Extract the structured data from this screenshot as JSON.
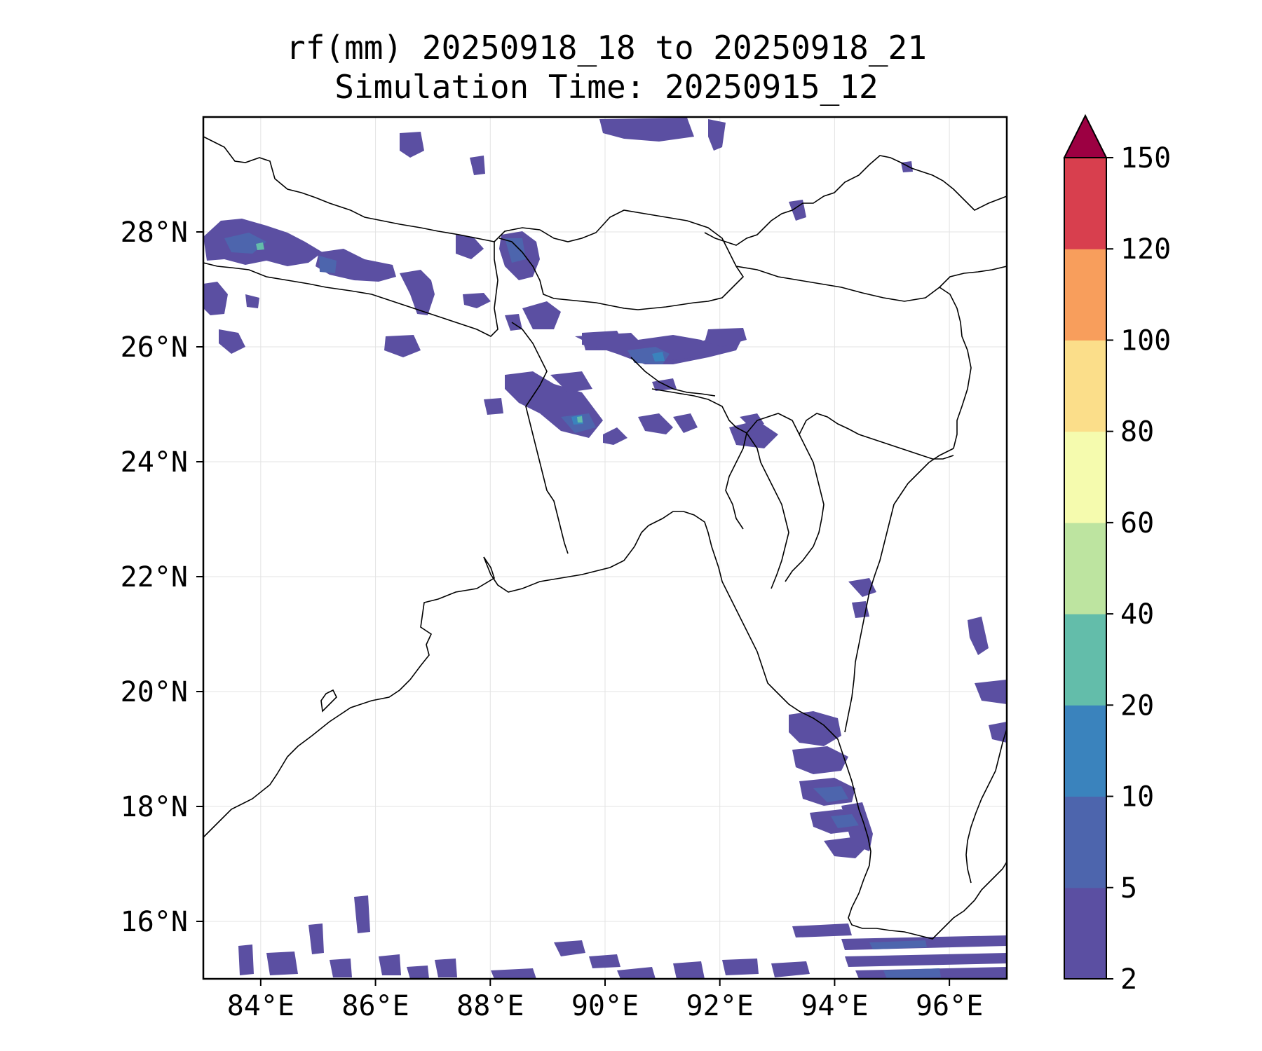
{
  "title": {
    "line1": "rf(mm) 20250918_18 to 20250918_21",
    "line2": "Simulation Time: 20250915_12"
  },
  "map": {
    "lon_range": [
      83,
      97
    ],
    "lat_range": [
      15,
      30
    ],
    "lon_ticks": [
      84,
      86,
      88,
      90,
      92,
      94,
      96
    ],
    "lon_tick_labels": [
      "84°E",
      "86°E",
      "88°E",
      "90°E",
      "92°E",
      "94°E",
      "96°E"
    ],
    "lat_ticks": [
      16,
      18,
      20,
      22,
      24,
      26,
      28
    ],
    "lat_tick_labels": [
      "16°N",
      "18°N",
      "20°N",
      "22°N",
      "24°N",
      "26°N",
      "28°N"
    ],
    "gridlines": true,
    "coastline_color": "#000000"
  },
  "colorbar": {
    "levels": [
      "2",
      "5",
      "10",
      "20",
      "40",
      "60",
      "80",
      "100",
      "120",
      "150"
    ],
    "colors": [
      "#5b4fa2",
      "#4d65ad",
      "#3a83bd",
      "#63bdaa",
      "#bde4a0",
      "#f5fbae",
      "#fbde8a",
      "#f89e5c",
      "#d83f4e"
    ],
    "extend_color": "#9c0042",
    "extend": "max"
  },
  "rain_colors": {
    "light": "#5b4fa2",
    "moderate": "#4d65ad",
    "heavy": "#3a83bd",
    "very_heavy": "#63bdaa"
  }
}
